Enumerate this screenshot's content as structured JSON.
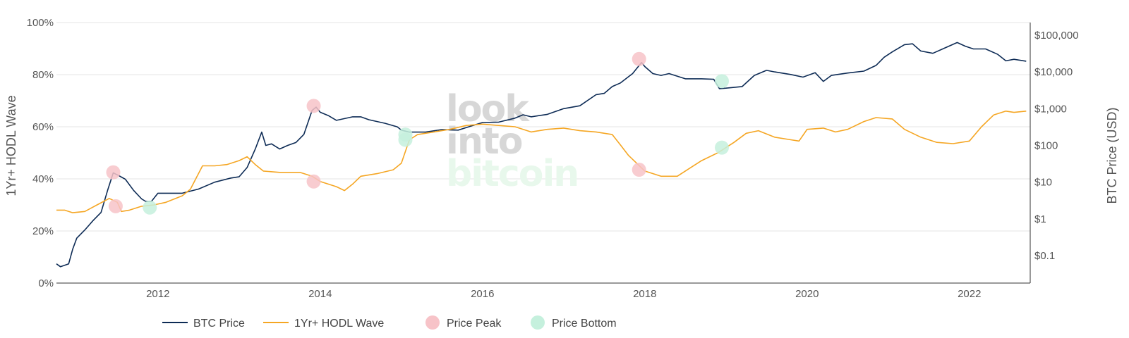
{
  "chart_data": {
    "type": "line",
    "title": "",
    "watermark": [
      "look",
      "into",
      "bitcoin"
    ],
    "x_axis": {
      "range": [
        2010.75,
        2022.75
      ],
      "ticks": [
        2012,
        2014,
        2016,
        2018,
        2020,
        2022
      ],
      "tick_labels": [
        "2012",
        "2014",
        "2016",
        "2018",
        "2020",
        "2022"
      ]
    },
    "y_left": {
      "label": "1Yr+ HODL Wave",
      "range": [
        0,
        100
      ],
      "ticks": [
        0,
        20,
        40,
        60,
        80,
        100
      ],
      "tick_labels": [
        "0%",
        "20%",
        "40%",
        "60%",
        "80%",
        "100%"
      ]
    },
    "y_right": {
      "label": "BTC Price (USD)",
      "scale": "log",
      "range": [
        0.018,
        220000
      ],
      "ticks": [
        0.1,
        1,
        10,
        100,
        1000,
        10000,
        100000
      ],
      "tick_labels": [
        "$0.1",
        "$1",
        "$10",
        "$100",
        "$1,000",
        "$10,000",
        "$100,000"
      ]
    },
    "series": [
      {
        "name": "BTC Price",
        "axis": "right",
        "color": "#0d2b55",
        "points": [
          [
            2010.75,
            0.06
          ],
          [
            2010.8,
            0.05
          ],
          [
            2010.9,
            0.06
          ],
          [
            2010.95,
            0.15
          ],
          [
            2011.0,
            0.3
          ],
          [
            2011.1,
            0.5
          ],
          [
            2011.2,
            0.9
          ],
          [
            2011.3,
            1.5
          ],
          [
            2011.38,
            6
          ],
          [
            2011.45,
            18
          ],
          [
            2011.52,
            15
          ],
          [
            2011.6,
            12
          ],
          [
            2011.7,
            6
          ],
          [
            2011.8,
            3.5
          ],
          [
            2011.85,
            3
          ],
          [
            2011.92,
            3
          ],
          [
            2012.0,
            5
          ],
          [
            2012.1,
            5
          ],
          [
            2012.3,
            5
          ],
          [
            2012.5,
            6.5
          ],
          [
            2012.7,
            10
          ],
          [
            2012.9,
            13
          ],
          [
            2013.0,
            14
          ],
          [
            2013.1,
            25
          ],
          [
            2013.2,
            80
          ],
          [
            2013.28,
            230
          ],
          [
            2013.33,
            100
          ],
          [
            2013.4,
            110
          ],
          [
            2013.5,
            80
          ],
          [
            2013.6,
            100
          ],
          [
            2013.7,
            120
          ],
          [
            2013.8,
            200
          ],
          [
            2013.9,
            900
          ],
          [
            2013.95,
            1100
          ],
          [
            2014.0,
            800
          ],
          [
            2014.1,
            650
          ],
          [
            2014.2,
            480
          ],
          [
            2014.4,
            600
          ],
          [
            2014.5,
            600
          ],
          [
            2014.6,
            500
          ],
          [
            2014.8,
            400
          ],
          [
            2014.95,
            320
          ],
          [
            2015.0,
            260
          ],
          [
            2015.1,
            230
          ],
          [
            2015.3,
            230
          ],
          [
            2015.5,
            270
          ],
          [
            2015.7,
            260
          ],
          [
            2015.85,
            330
          ],
          [
            2016.0,
            420
          ],
          [
            2016.2,
            430
          ],
          [
            2016.4,
            550
          ],
          [
            2016.5,
            680
          ],
          [
            2016.6,
            600
          ],
          [
            2016.8,
            700
          ],
          [
            2017.0,
            1000
          ],
          [
            2017.2,
            1200
          ],
          [
            2017.4,
            2400
          ],
          [
            2017.5,
            2600
          ],
          [
            2017.6,
            4000
          ],
          [
            2017.7,
            5000
          ],
          [
            2017.85,
            9000
          ],
          [
            2017.96,
            18000
          ],
          [
            2018.0,
            14000
          ],
          [
            2018.1,
            9000
          ],
          [
            2018.2,
            8000
          ],
          [
            2018.3,
            9000
          ],
          [
            2018.5,
            6500
          ],
          [
            2018.7,
            6500
          ],
          [
            2018.85,
            6300
          ],
          [
            2018.92,
            3500
          ],
          [
            2019.0,
            3600
          ],
          [
            2019.2,
            4000
          ],
          [
            2019.35,
            8000
          ],
          [
            2019.5,
            11000
          ],
          [
            2019.6,
            10000
          ],
          [
            2019.8,
            8500
          ],
          [
            2019.95,
            7200
          ],
          [
            2020.1,
            9500
          ],
          [
            2020.2,
            5500
          ],
          [
            2020.3,
            8000
          ],
          [
            2020.5,
            9300
          ],
          [
            2020.7,
            10500
          ],
          [
            2020.85,
            15000
          ],
          [
            2020.95,
            25000
          ],
          [
            2021.05,
            35000
          ],
          [
            2021.2,
            55000
          ],
          [
            2021.3,
            58000
          ],
          [
            2021.4,
            37000
          ],
          [
            2021.55,
            32000
          ],
          [
            2021.7,
            45000
          ],
          [
            2021.85,
            63000
          ],
          [
            2021.95,
            50000
          ],
          [
            2022.05,
            42000
          ],
          [
            2022.2,
            42000
          ],
          [
            2022.35,
            30000
          ],
          [
            2022.45,
            20000
          ],
          [
            2022.55,
            22000
          ],
          [
            2022.7,
            19500
          ]
        ]
      },
      {
        "name": "1Yr+ HODL Wave",
        "axis": "left",
        "color": "#f5a623",
        "points": [
          [
            2010.75,
            28
          ],
          [
            2010.85,
            28
          ],
          [
            2010.95,
            27
          ],
          [
            2011.1,
            27.5
          ],
          [
            2011.25,
            30
          ],
          [
            2011.4,
            32.5
          ],
          [
            2011.5,
            31
          ],
          [
            2011.55,
            27.5
          ],
          [
            2011.65,
            28
          ],
          [
            2011.8,
            29.5
          ],
          [
            2011.95,
            30
          ],
          [
            2012.1,
            31
          ],
          [
            2012.3,
            33.5
          ],
          [
            2012.4,
            36
          ],
          [
            2012.45,
            39
          ],
          [
            2012.55,
            45
          ],
          [
            2012.7,
            45
          ],
          [
            2012.85,
            45.5
          ],
          [
            2013.0,
            47
          ],
          [
            2013.1,
            48.5
          ],
          [
            2013.2,
            45.5
          ],
          [
            2013.3,
            43
          ],
          [
            2013.5,
            42.5
          ],
          [
            2013.75,
            42.5
          ],
          [
            2013.9,
            41
          ],
          [
            2014.0,
            39
          ],
          [
            2014.2,
            37
          ],
          [
            2014.3,
            35.5
          ],
          [
            2014.4,
            38
          ],
          [
            2014.5,
            41
          ],
          [
            2014.7,
            42
          ],
          [
            2014.9,
            43.5
          ],
          [
            2015.0,
            46
          ],
          [
            2015.1,
            55
          ],
          [
            2015.2,
            57
          ],
          [
            2015.4,
            58
          ],
          [
            2015.6,
            59
          ],
          [
            2015.8,
            60.5
          ],
          [
            2016.0,
            61
          ],
          [
            2016.2,
            60.5
          ],
          [
            2016.4,
            60
          ],
          [
            2016.6,
            58
          ],
          [
            2016.8,
            59
          ],
          [
            2017.0,
            59.5
          ],
          [
            2017.2,
            58.5
          ],
          [
            2017.4,
            58
          ],
          [
            2017.6,
            57
          ],
          [
            2017.7,
            53
          ],
          [
            2017.8,
            49
          ],
          [
            2017.9,
            46
          ],
          [
            2018.0,
            43
          ],
          [
            2018.2,
            41
          ],
          [
            2018.4,
            41
          ],
          [
            2018.55,
            44
          ],
          [
            2018.7,
            47
          ],
          [
            2018.9,
            50
          ],
          [
            2019.0,
            52
          ],
          [
            2019.1,
            54
          ],
          [
            2019.25,
            57.5
          ],
          [
            2019.4,
            58.5
          ],
          [
            2019.6,
            56
          ],
          [
            2019.8,
            55
          ],
          [
            2019.9,
            54.5
          ],
          [
            2020.0,
            59
          ],
          [
            2020.2,
            59.5
          ],
          [
            2020.35,
            58
          ],
          [
            2020.5,
            59
          ],
          [
            2020.7,
            62
          ],
          [
            2020.85,
            63.5
          ],
          [
            2021.05,
            63
          ],
          [
            2021.2,
            59
          ],
          [
            2021.4,
            56
          ],
          [
            2021.6,
            54
          ],
          [
            2021.8,
            53.5
          ],
          [
            2022.0,
            54.5
          ],
          [
            2022.15,
            60
          ],
          [
            2022.3,
            64.5
          ],
          [
            2022.45,
            66
          ],
          [
            2022.55,
            65.5
          ],
          [
            2022.7,
            66
          ]
        ]
      },
      {
        "name": "Price Peak",
        "type": "scatter",
        "color": "#f7c3c8",
        "points": [
          {
            "x": 2011.45,
            "axis": "left",
            "y": 42.5
          },
          {
            "x": 2011.48,
            "axis": "left",
            "y": 29.5
          },
          {
            "x": 2013.92,
            "axis": "left",
            "y": 68
          },
          {
            "x": 2013.92,
            "axis": "left",
            "y": 39
          },
          {
            "x": 2017.93,
            "axis": "left",
            "y": 86
          },
          {
            "x": 2017.93,
            "axis": "left",
            "y": 43.5
          }
        ]
      },
      {
        "name": "Price Bottom",
        "type": "scatter",
        "color": "#c5f0dd",
        "points": [
          {
            "x": 2011.9,
            "axis": "left",
            "y": 29
          },
          {
            "x": 2015.05,
            "axis": "left",
            "y": 57
          },
          {
            "x": 2015.05,
            "axis": "left",
            "y": 55
          },
          {
            "x": 2018.95,
            "axis": "left",
            "y": 77.5
          },
          {
            "x": 2018.95,
            "axis": "left",
            "y": 52
          }
        ]
      }
    ],
    "legend": {
      "position": "bottom",
      "items": [
        "BTC Price",
        "1Yr+ HODL Wave",
        "Price Peak",
        "Price Bottom"
      ]
    }
  }
}
